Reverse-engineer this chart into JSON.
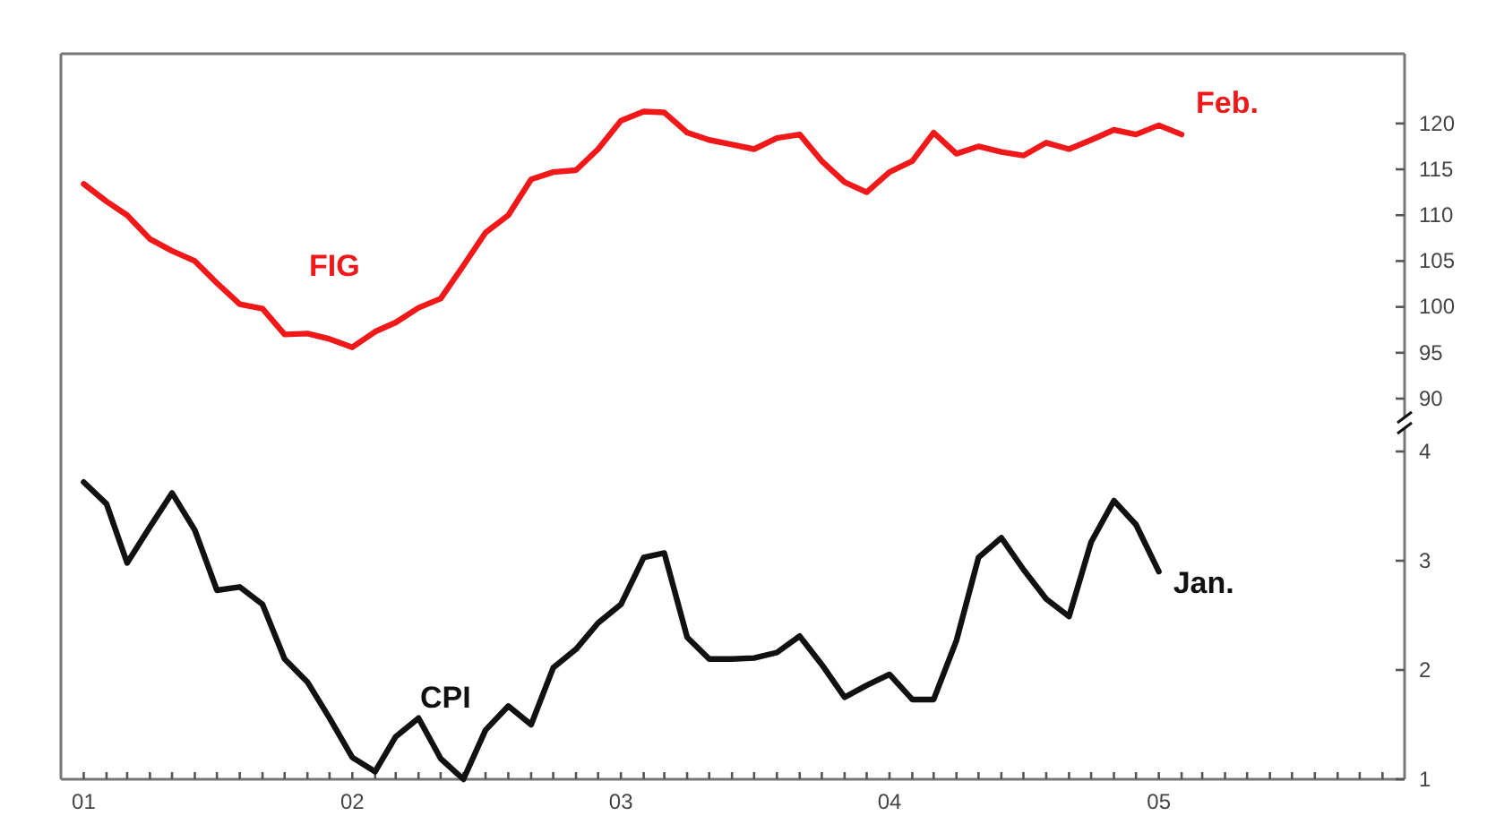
{
  "chart_data": {
    "type": "line",
    "x": [
      "2001-01",
      "2001-02",
      "2001-03",
      "2001-04",
      "2001-05",
      "2001-06",
      "2001-07",
      "2001-08",
      "2001-09",
      "2001-10",
      "2001-11",
      "2001-12",
      "2002-01",
      "2002-02",
      "2002-03",
      "2002-04",
      "2002-05",
      "2002-06",
      "2002-07",
      "2002-08",
      "2002-09",
      "2002-10",
      "2002-11",
      "2002-12",
      "2003-01",
      "2003-02",
      "2003-03",
      "2003-04",
      "2003-05",
      "2003-06",
      "2003-07",
      "2003-08",
      "2003-09",
      "2003-10",
      "2003-11",
      "2003-12",
      "2004-01",
      "2004-02",
      "2004-03",
      "2004-04",
      "2004-05",
      "2004-06",
      "2004-07",
      "2004-08",
      "2004-09",
      "2004-10",
      "2004-11",
      "2004-12",
      "2005-01",
      "2005-02"
    ],
    "series": [
      {
        "name": "FIG",
        "color": "#f01818",
        "axis": "y",
        "values": [
          113.4,
          111.5,
          110.0,
          107.4,
          106.1,
          105.0,
          102.6,
          100.3,
          99.8,
          97.0,
          97.1,
          96.5,
          95.6,
          97.3,
          98.3,
          99.9,
          100.9,
          104.5,
          108.1,
          110.0,
          113.9,
          114.7,
          114.9,
          117.2,
          120.3,
          121.3,
          121.2,
          119.0,
          118.2,
          117.7,
          117.2,
          118.4,
          118.8,
          115.9,
          113.6,
          112.5,
          114.7,
          115.9,
          119.0,
          116.7,
          117.5,
          116.9,
          116.5,
          117.9,
          117.2,
          118.2,
          119.3,
          118.8,
          119.8,
          118.8
        ]
      },
      {
        "name": "CPI",
        "color": "#111111",
        "axis": "y2",
        "values": [
          3.72,
          3.52,
          2.98,
          3.31,
          3.62,
          3.28,
          2.73,
          2.76,
          2.6,
          2.1,
          1.89,
          1.56,
          1.2,
          1.07,
          1.39,
          1.56,
          1.19,
          1.0,
          1.45,
          1.67,
          1.5,
          2.02,
          2.19,
          2.43,
          2.6,
          3.03,
          3.07,
          2.3,
          2.1,
          2.1,
          2.11,
          2.16,
          2.31,
          2.05,
          1.75,
          1.86,
          1.96,
          1.73,
          1.73,
          2.27,
          3.03,
          3.21,
          2.92,
          2.65,
          2.49,
          3.17,
          3.55,
          3.33,
          2.9,
          null
        ]
      }
    ],
    "annotations": [
      "Feb.",
      "Jan."
    ],
    "xlim": [
      "2000-12",
      "2005-12"
    ],
    "xticks": [
      {
        "value": "2001-01",
        "label": "01"
      },
      {
        "value": "2001-02",
        "label": null
      },
      {
        "value": "2001-03",
        "label": null
      },
      {
        "value": "2001-04",
        "label": null
      },
      {
        "value": "2001-05",
        "label": null
      },
      {
        "value": "2001-06",
        "label": null
      },
      {
        "value": "2001-07",
        "label": null
      },
      {
        "value": "2001-08",
        "label": null
      },
      {
        "value": "2001-09",
        "label": null
      },
      {
        "value": "2001-10",
        "label": null
      },
      {
        "value": "2001-11",
        "label": null
      },
      {
        "value": "2001-12",
        "label": null
      },
      {
        "value": "2002-01",
        "label": "02"
      },
      {
        "value": "2002-02",
        "label": null
      },
      {
        "value": "2002-03",
        "label": null
      },
      {
        "value": "2002-04",
        "label": null
      },
      {
        "value": "2002-05",
        "label": null
      },
      {
        "value": "2002-06",
        "label": null
      },
      {
        "value": "2002-07",
        "label": null
      },
      {
        "value": "2002-08",
        "label": null
      },
      {
        "value": "2002-09",
        "label": null
      },
      {
        "value": "2002-10",
        "label": null
      },
      {
        "value": "2002-11",
        "label": null
      },
      {
        "value": "2002-12",
        "label": null
      },
      {
        "value": "2003-01",
        "label": "03"
      },
      {
        "value": "2003-02",
        "label": null
      },
      {
        "value": "2003-03",
        "label": null
      },
      {
        "value": "2003-04",
        "label": null
      },
      {
        "value": "2003-05",
        "label": null
      },
      {
        "value": "2003-06",
        "label": null
      },
      {
        "value": "2003-07",
        "label": null
      },
      {
        "value": "2003-08",
        "label": null
      },
      {
        "value": "2003-09",
        "label": null
      },
      {
        "value": "2003-10",
        "label": null
      },
      {
        "value": "2003-11",
        "label": null
      },
      {
        "value": "2003-12",
        "label": null
      },
      {
        "value": "2004-01",
        "label": "04"
      },
      {
        "value": "2004-02",
        "label": null
      },
      {
        "value": "2004-03",
        "label": null
      },
      {
        "value": "2004-04",
        "label": null
      },
      {
        "value": "2004-05",
        "label": null
      },
      {
        "value": "2004-06",
        "label": null
      },
      {
        "value": "2004-07",
        "label": null
      },
      {
        "value": "2004-08",
        "label": null
      },
      {
        "value": "2004-09",
        "label": null
      },
      {
        "value": "2004-10",
        "label": null
      },
      {
        "value": "2004-11",
        "label": null
      },
      {
        "value": "2004-12",
        "label": null
      },
      {
        "value": "2005-01",
        "label": "05"
      },
      {
        "value": "2005-02",
        "label": null
      },
      {
        "value": "2005-03",
        "label": null
      },
      {
        "value": "2005-04",
        "label": null
      },
      {
        "value": "2005-05",
        "label": null
      },
      {
        "value": "2005-06",
        "label": null
      },
      {
        "value": "2005-07",
        "label": null
      },
      {
        "value": "2005-08",
        "label": null
      },
      {
        "value": "2005-09",
        "label": null
      },
      {
        "value": "2005-10",
        "label": null
      },
      {
        "value": "2005-11",
        "label": null
      }
    ],
    "ylim": [
      48.5,
      127.6
    ],
    "yticks": [
      90,
      95,
      100,
      105,
      110,
      115,
      120
    ],
    "y2lim": [
      1,
      7.64
    ],
    "y2ticks": [
      1,
      2,
      3,
      4
    ],
    "grid": false,
    "legend": false,
    "marker": "none",
    "line_style": "solid"
  }
}
